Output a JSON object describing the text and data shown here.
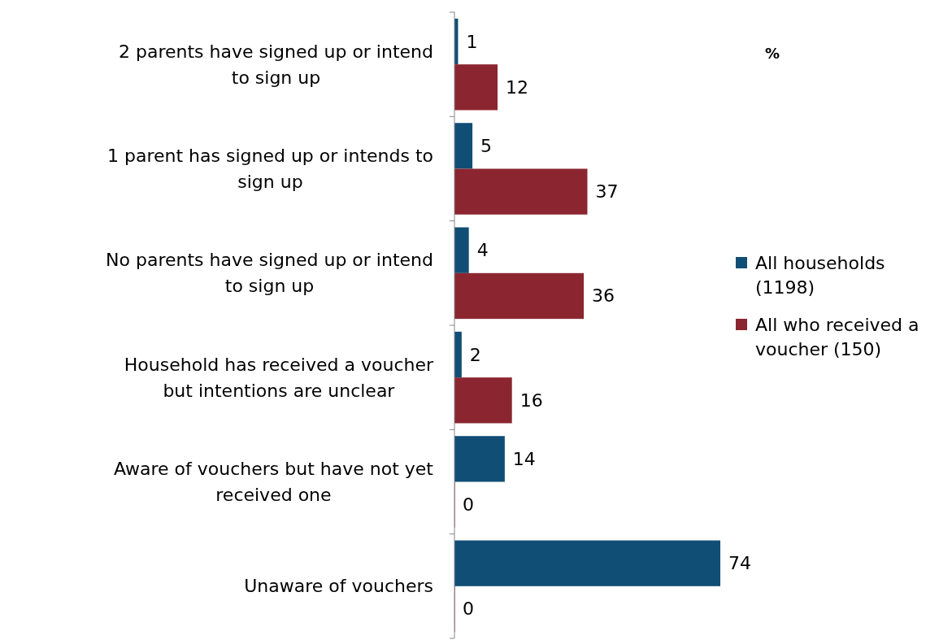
{
  "chart_data": {
    "type": "bar",
    "orientation": "horizontal",
    "categories": [
      "2 parents have signed up or intend to sign up",
      "1 parent has signed up or intends to sign up",
      "No parents have signed up or intend to sign up",
      "Household has received a voucher but intentions are unclear",
      "Aware of vouchers but have not yet received one",
      "Unaware of vouchers"
    ],
    "series": [
      {
        "name": "All households (1198)",
        "color": "#114e76",
        "values": [
          1,
          5,
          4,
          2,
          14,
          74
        ]
      },
      {
        "name": "All who received a voucher (150)",
        "color": "#8b2630",
        "values": [
          12,
          37,
          36,
          16,
          0,
          0
        ]
      }
    ],
    "data_labels": true,
    "legend": "right",
    "annotations": [
      "%"
    ]
  }
}
